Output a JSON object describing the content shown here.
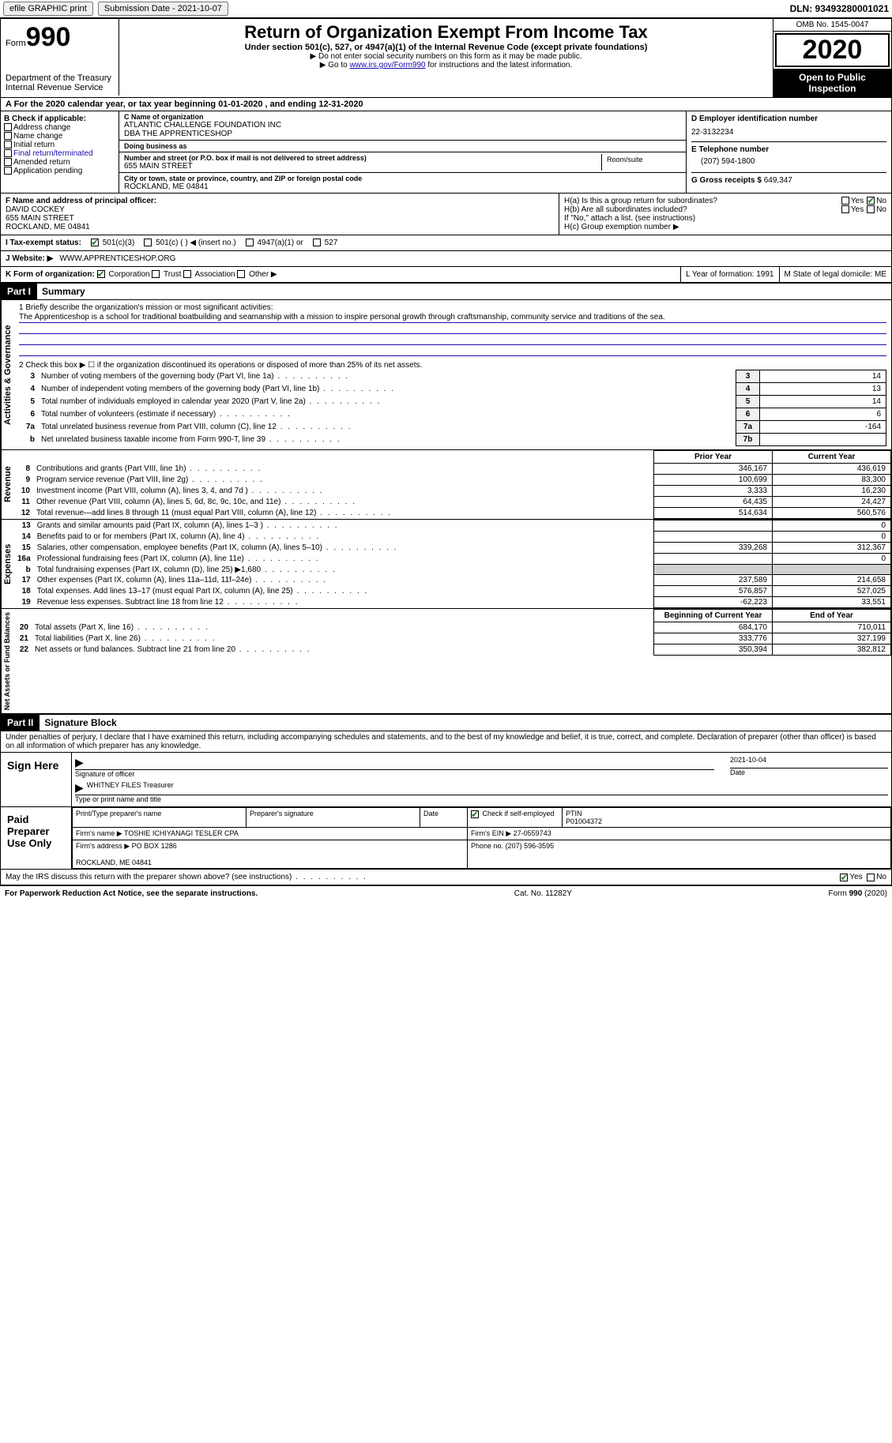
{
  "topbar": {
    "efile": "efile GRAPHIC print",
    "submission": "Submission Date - 2021-10-07",
    "dln": "DLN: 93493280001021"
  },
  "header": {
    "form_prefix": "Form",
    "form_num": "990",
    "dept": "Department of the Treasury\nInternal Revenue Service",
    "title": "Return of Organization Exempt From Income Tax",
    "sub": "Under section 501(c), 527, or 4947(a)(1) of the Internal Revenue Code (except private foundations)",
    "note1": "▶ Do not enter social security numbers on this form as it may be made public.",
    "note2_pre": "▶ Go to ",
    "note2_link": "www.irs.gov/Form990",
    "note2_post": " for instructions and the latest information.",
    "omb": "OMB No. 1545-0047",
    "year": "2020",
    "inspect": "Open to Public Inspection"
  },
  "row_a": "A For the 2020 calendar year, or tax year beginning 01-01-2020     , and ending 12-31-2020",
  "col_b": {
    "title": "B Check if applicable:",
    "opts": [
      "Address change",
      "Name change",
      "Initial return",
      "Final return/terminated",
      "Amended return",
      "Application pending"
    ]
  },
  "col_c": {
    "name_lbl": "C Name of organization",
    "name": "ATLANTIC CHALLENGE FOUNDATION INC\nDBA THE APPRENTICESHOP",
    "dba_lbl": "Doing business as",
    "dba": "",
    "addr_lbl": "Number and street (or P.O. box if mail is not delivered to street address)",
    "addr": "655 MAIN STREET",
    "room_lbl": "Room/suite",
    "city_lbl": "City or town, state or province, country, and ZIP or foreign postal code",
    "city": "ROCKLAND, ME  04841"
  },
  "col_d": {
    "ein_lbl": "D Employer identification number",
    "ein": "22-3132234",
    "phone_lbl": "E Telephone number",
    "phone": "(207) 594-1800",
    "gross_lbl": "G Gross receipts $",
    "gross": "649,347"
  },
  "section_f": {
    "lbl": "F Name and address of principal officer:",
    "name": "DAVID COCKEY",
    "addr": "655 MAIN STREET\nROCKLAND, ME  04841",
    "ha": "H(a)  Is this a group return for subordinates?",
    "hb": "H(b)  Are all subordinates included?",
    "hb_note": "If \"No,\" attach a list. (see instructions)",
    "hc": "H(c)  Group exemption number ▶"
  },
  "tax_status": {
    "lbl": "I   Tax-exempt status:",
    "opts": [
      "501(c)(3)",
      "501(c) (  ) ◀ (insert no.)",
      "4947(a)(1) or",
      "527"
    ]
  },
  "website": {
    "lbl": "J  Website: ▶",
    "val": "WWW.APPRENTICESHOP.ORG"
  },
  "k_row": {
    "k": "K Form of organization:",
    "opts": [
      "Corporation",
      "Trust",
      "Association",
      "Other ▶"
    ],
    "l": "L Year of formation: 1991",
    "m": "M State of legal domicile: ME"
  },
  "part1": {
    "num": "Part I",
    "title": "Summary"
  },
  "ag": {
    "label": "Activities & Governance",
    "q1_lbl": "1   Briefly describe the organization's mission or most significant activities:",
    "q1_text": "The Apprenticeshop is a school for traditional boatbuilding and seamanship with a mission to inspire personal growth through craftsmanship, community service and traditions of the sea.",
    "q2": "2   Check this box ▶ ☐  if the organization discontinued its operations or disposed of more than 25% of its net assets.",
    "rows": [
      {
        "n": "3",
        "label": "Number of voting members of the governing body (Part VI, line 1a)",
        "box": "3",
        "val": "14"
      },
      {
        "n": "4",
        "label": "Number of independent voting members of the governing body (Part VI, line 1b)",
        "box": "4",
        "val": "13"
      },
      {
        "n": "5",
        "label": "Total number of individuals employed in calendar year 2020 (Part V, line 2a)",
        "box": "5",
        "val": "14"
      },
      {
        "n": "6",
        "label": "Total number of volunteers (estimate if necessary)",
        "box": "6",
        "val": "6"
      },
      {
        "n": "7a",
        "label": "Total unrelated business revenue from Part VIII, column (C), line 12",
        "box": "7a",
        "val": "-164"
      },
      {
        "n": "b",
        "label": "Net unrelated business taxable income from Form 990-T, line 39",
        "box": "7b",
        "val": ""
      }
    ]
  },
  "rev": {
    "label": "Revenue",
    "head_prior": "Prior Year",
    "head_curr": "Current Year",
    "rows": [
      {
        "n": "8",
        "label": "Contributions and grants (Part VIII, line 1h)",
        "prior": "346,167",
        "curr": "436,619"
      },
      {
        "n": "9",
        "label": "Program service revenue (Part VIII, line 2g)",
        "prior": "100,699",
        "curr": "83,300"
      },
      {
        "n": "10",
        "label": "Investment income (Part VIII, column (A), lines 3, 4, and 7d )",
        "prior": "3,333",
        "curr": "16,230"
      },
      {
        "n": "11",
        "label": "Other revenue (Part VIII, column (A), lines 5, 6d, 8c, 9c, 10c, and 11e)",
        "prior": "64,435",
        "curr": "24,427"
      },
      {
        "n": "12",
        "label": "Total revenue—add lines 8 through 11 (must equal Part VIII, column (A), line 12)",
        "prior": "514,634",
        "curr": "560,576"
      }
    ]
  },
  "exp": {
    "label": "Expenses",
    "rows": [
      {
        "n": "13",
        "label": "Grants and similar amounts paid (Part IX, column (A), lines 1–3 )",
        "prior": "",
        "curr": "0"
      },
      {
        "n": "14",
        "label": "Benefits paid to or for members (Part IX, column (A), line 4)",
        "prior": "",
        "curr": "0"
      },
      {
        "n": "15",
        "label": "Salaries, other compensation, employee benefits (Part IX, column (A), lines 5–10)",
        "prior": "339,268",
        "curr": "312,367"
      },
      {
        "n": "16a",
        "label": "Professional fundraising fees (Part IX, column (A), line 11e)",
        "prior": "",
        "curr": "0"
      },
      {
        "n": "b",
        "label": "Total fundraising expenses (Part IX, column (D), line 25) ▶1,680",
        "prior": "__shade__",
        "curr": "__shade__"
      },
      {
        "n": "17",
        "label": "Other expenses (Part IX, column (A), lines 11a–11d, 11f–24e)",
        "prior": "237,589",
        "curr": "214,658"
      },
      {
        "n": "18",
        "label": "Total expenses. Add lines 13–17 (must equal Part IX, column (A), line 25)",
        "prior": "576,857",
        "curr": "527,025"
      },
      {
        "n": "19",
        "label": "Revenue less expenses. Subtract line 18 from line 12",
        "prior": "-62,223",
        "curr": "33,551"
      }
    ]
  },
  "net": {
    "label": "Net Assets or Fund Balances",
    "head_prior": "Beginning of Current Year",
    "head_curr": "End of Year",
    "rows": [
      {
        "n": "20",
        "label": "Total assets (Part X, line 16)",
        "prior": "684,170",
        "curr": "710,011"
      },
      {
        "n": "21",
        "label": "Total liabilities (Part X, line 26)",
        "prior": "333,776",
        "curr": "327,199"
      },
      {
        "n": "22",
        "label": "Net assets or fund balances. Subtract line 21 from line 20",
        "prior": "350,394",
        "curr": "382,812"
      }
    ]
  },
  "part2": {
    "num": "Part II",
    "title": "Signature Block"
  },
  "sig": {
    "penalty": "Under penalties of perjury, I declare that I have examined this return, including accompanying schedules and statements, and to the best of my knowledge and belief, it is true, correct, and complete. Declaration of preparer (other than officer) is based on all information of which preparer has any knowledge.",
    "sign_here": "Sign Here",
    "sig_officer": "Signature of officer",
    "sig_date": "2021-10-04",
    "date_lbl": "Date",
    "name": "WHITNEY FILES Treasurer",
    "name_lbl": "Type or print name and title",
    "paid": "Paid Preparer Use Only",
    "prep_name_lbl": "Print/Type preparer's name",
    "prep_sig_lbl": "Preparer's signature",
    "prep_date_lbl": "Date",
    "self_emp": "Check ☑ if self-employed",
    "ptin_lbl": "PTIN",
    "ptin": "P01004372",
    "firm_name_lbl": "Firm's name    ▶",
    "firm_name": "TOSHIE ICHIYANAGI TESLER CPA",
    "firm_ein_lbl": "Firm's EIN ▶",
    "firm_ein": "27-0559743",
    "firm_addr_lbl": "Firm's address ▶",
    "firm_addr": "PO BOX 1286\n\nROCKLAND, ME  04841",
    "firm_phone_lbl": "Phone no.",
    "firm_phone": "(207) 596-3595",
    "discuss": "May the IRS discuss this return with the preparer shown above? (see instructions)"
  },
  "footer": {
    "left": "For Paperwork Reduction Act Notice, see the separate instructions.",
    "mid": "Cat. No. 11282Y",
    "right": "Form 990 (2020)"
  }
}
